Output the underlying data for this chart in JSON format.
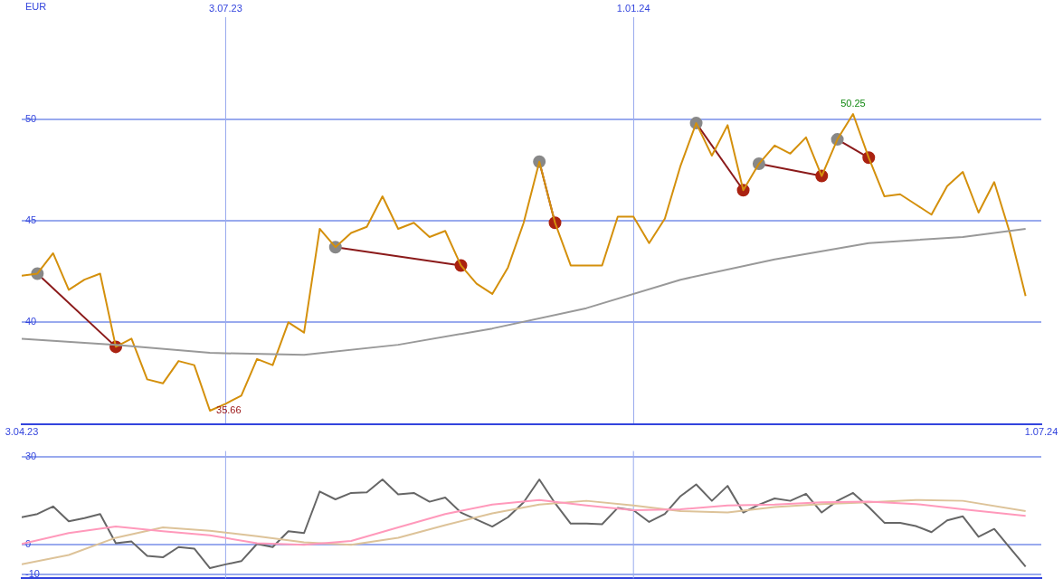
{
  "chart_data": [
    {
      "type": "line",
      "ylabel": "EUR",
      "x": [
        "2023-04-03",
        "2023-04-10",
        "2023-04-17",
        "2023-04-24",
        "2023-05-01",
        "2023-05-08",
        "2023-05-15",
        "2023-05-22",
        "2023-05-29",
        "2023-06-05",
        "2023-06-12",
        "2023-06-19",
        "2023-06-26",
        "2023-07-03",
        "2023-07-10",
        "2023-07-17",
        "2023-07-24",
        "2023-07-31",
        "2023-08-07",
        "2023-08-14",
        "2023-08-21",
        "2023-08-28",
        "2023-09-04",
        "2023-09-11",
        "2023-09-18",
        "2023-09-25",
        "2023-10-02",
        "2023-10-09",
        "2023-10-16",
        "2023-10-23",
        "2023-10-30",
        "2023-11-06",
        "2023-11-13",
        "2023-11-20",
        "2023-11-27",
        "2023-12-04",
        "2023-12-11",
        "2023-12-18",
        "2023-12-25",
        "2024-01-01",
        "2024-01-08",
        "2024-01-15",
        "2024-01-22",
        "2024-01-29",
        "2024-02-05",
        "2024-02-12",
        "2024-02-19",
        "2024-02-26",
        "2024-03-04",
        "2024-03-11",
        "2024-03-18",
        "2024-03-25",
        "2024-04-01",
        "2024-04-08",
        "2024-04-15",
        "2024-04-22",
        "2024-04-29",
        "2024-05-06",
        "2024-05-13",
        "2024-05-20",
        "2024-05-27",
        "2024-06-03",
        "2024-06-10",
        "2024-06-17",
        "2024-06-24"
      ],
      "series": [
        {
          "color": "#999999",
          "marker": "none",
          "x": [
            "2023-04-03",
            "2023-05-15",
            "2023-06-26",
            "2023-08-07",
            "2023-09-18",
            "2023-10-30",
            "2023-12-11",
            "2024-01-22",
            "2024-03-04",
            "2024-04-15",
            "2024-05-27",
            "2024-06-24"
          ],
          "values": [
            39.2,
            38.9,
            38.5,
            38.4,
            38.9,
            39.7,
            40.7,
            42.1,
            43.1,
            43.9,
            44.2,
            44.6
          ]
        },
        {
          "color": "#d4900c",
          "marker": "none",
          "values": [
            42.3,
            42.4,
            43.4,
            41.6,
            42.1,
            42.4,
            38.8,
            39.2,
            37.2,
            37.0,
            38.1,
            37.9,
            35.66,
            36.0,
            36.4,
            38.2,
            37.9,
            40.0,
            39.5,
            44.6,
            43.7,
            44.4,
            44.7,
            46.2,
            44.6,
            44.9,
            44.2,
            44.5,
            42.8,
            41.9,
            41.4,
            42.7,
            44.9,
            47.9,
            44.9,
            42.8,
            42.8,
            42.8,
            45.2,
            45.2,
            43.9,
            45.1,
            47.7,
            49.8,
            48.2,
            49.7,
            46.5,
            47.8,
            48.7,
            48.3,
            49.1,
            47.2,
            49.0,
            50.25,
            48.1,
            46.2,
            46.3,
            45.8,
            45.3,
            46.7,
            47.4,
            45.4,
            46.9,
            44.4,
            41.3
          ]
        },
        {
          "color": "#8b1a1a",
          "marker": "circle",
          "x": [
            "2023-04-10",
            "2023-05-15"
          ],
          "values": [
            42.4,
            38.8
          ],
          "colors": [
            "#888888",
            "#aa2211"
          ]
        },
        {
          "color": "#8b1a1a",
          "marker": "circle",
          "x": [
            "2023-08-21",
            "2023-10-16"
          ],
          "values": [
            43.7,
            42.8
          ],
          "colors": [
            "#888888",
            "#aa2211"
          ]
        },
        {
          "color": "#8b1a1a",
          "marker": "circle",
          "x": [
            "2023-11-20",
            "2023-11-27"
          ],
          "values": [
            47.9,
            44.9
          ],
          "colors": [
            "#888888",
            "#aa2211"
          ]
        },
        {
          "color": "#8b1a1a",
          "marker": "circle",
          "x": [
            "2024-01-29",
            "2024-02-19"
          ],
          "values": [
            49.8,
            46.5
          ],
          "colors": [
            "#888888",
            "#aa2211"
          ]
        },
        {
          "color": "#8b1a1a",
          "marker": "circle",
          "x": [
            "2024-02-26",
            "2024-03-25"
          ],
          "values": [
            47.8,
            47.2
          ],
          "colors": [
            "#888888",
            "#aa2211"
          ]
        },
        {
          "color": "#8b1a1a",
          "marker": "circle",
          "x": [
            "2024-04-01",
            "2024-04-15"
          ],
          "values": [
            49.0,
            48.1
          ],
          "colors": [
            "#888888",
            "#aa2211"
          ]
        }
      ],
      "xlim": [
        "2023-04-03",
        "2024-07-01"
      ],
      "xticks": [
        {
          "value": "2023-04-03",
          "label": "3.04.23"
        },
        {
          "value": "2024-07-01",
          "label": "1.07.24"
        }
      ],
      "x2lim": [
        "2023-04-03",
        "2024-07-01"
      ],
      "x2ticks": [
        {
          "value": "2023-07-03",
          "label": "3.07.23"
        },
        {
          "value": "2024-01-01",
          "label": "1.01.24"
        }
      ],
      "ylim": [
        35,
        55
      ],
      "yticks": [
        40,
        45,
        50
      ],
      "grid": true,
      "annotations": [
        {
          "text": "35.66",
          "x": "2023-06-26",
          "y": 35.66
        },
        {
          "text": "50.25",
          "x": "2024-04-08",
          "y": 50.25
        }
      ]
    },
    {
      "type": "line",
      "x": [
        "2023-04-03",
        "2023-04-10",
        "2023-04-17",
        "2023-04-24",
        "2023-05-01",
        "2023-05-08",
        "2023-05-15",
        "2023-05-22",
        "2023-05-29",
        "2023-06-05",
        "2023-06-12",
        "2023-06-19",
        "2023-06-26",
        "2023-07-03",
        "2023-07-10",
        "2023-07-17",
        "2023-07-24",
        "2023-07-31",
        "2023-08-07",
        "2023-08-14",
        "2023-08-21",
        "2023-08-28",
        "2023-09-04",
        "2023-09-11",
        "2023-09-18",
        "2023-09-25",
        "2023-10-02",
        "2023-10-09",
        "2023-10-16",
        "2023-10-23",
        "2023-10-30",
        "2023-11-06",
        "2023-11-13",
        "2023-11-20",
        "2023-11-27",
        "2023-12-04",
        "2023-12-11",
        "2023-12-18",
        "2023-12-25",
        "2024-01-01",
        "2024-01-08",
        "2024-01-15",
        "2024-01-22",
        "2024-01-29",
        "2024-02-05",
        "2024-02-12",
        "2024-02-19",
        "2024-02-26",
        "2024-03-04",
        "2024-03-11",
        "2024-03-18",
        "2024-03-25",
        "2024-04-01",
        "2024-04-08",
        "2024-04-15",
        "2024-04-22",
        "2024-04-29",
        "2024-05-06",
        "2024-05-13",
        "2024-05-20",
        "2024-05-27",
        "2024-06-03",
        "2024-06-10",
        "2024-06-17",
        "2024-06-24"
      ],
      "series": [
        {
          "color": "#ff99bb",
          "marker": "none",
          "x": [
            "2023-04-03",
            "2023-04-24",
            "2023-05-15",
            "2023-06-05",
            "2023-06-26",
            "2023-07-17",
            "2023-08-07",
            "2023-08-28",
            "2023-09-18",
            "2023-10-09",
            "2023-10-30",
            "2023-11-20",
            "2023-12-11",
            "2024-01-01",
            "2024-01-22",
            "2024-02-12",
            "2024-03-04",
            "2024-03-25",
            "2024-04-15",
            "2024-05-06",
            "2024-05-27",
            "2024-06-24"
          ],
          "values": [
            0.3,
            4,
            6.2,
            4.6,
            3.2,
            0.5,
            0,
            1.3,
            5.9,
            10.5,
            13.7,
            15.3,
            13.4,
            11.8,
            12.1,
            13.4,
            13.7,
            14.5,
            14.7,
            13.9,
            12.1,
            9.9
          ]
        },
        {
          "color": "#ddc399",
          "marker": "none",
          "x": [
            "2023-04-03",
            "2023-04-24",
            "2023-05-15",
            "2023-06-05",
            "2023-06-26",
            "2023-07-17",
            "2023-08-07",
            "2023-08-28",
            "2023-09-18",
            "2023-10-09",
            "2023-10-30",
            "2023-11-20",
            "2023-12-11",
            "2024-01-01",
            "2024-01-22",
            "2024-02-12",
            "2024-03-04",
            "2024-03-25",
            "2024-04-15",
            "2024-05-06",
            "2024-05-27",
            "2024-06-24"
          ],
          "values": [
            -6.7,
            -3.5,
            2.4,
            5.9,
            4.8,
            2.9,
            0.8,
            0,
            2.4,
            6.7,
            10.7,
            13.7,
            15.0,
            13.4,
            11.5,
            11.0,
            12.9,
            13.9,
            14.5,
            15.3,
            15.0,
            11.5
          ]
        },
        {
          "color": "#666666",
          "marker": "none",
          "values": [
            9.4,
            10.5,
            13.1,
            8.0,
            9.1,
            10.5,
            0.5,
            1.1,
            -3.8,
            -4.3,
            -0.8,
            -1.3,
            -8.0,
            -6.7,
            -5.6,
            0.3,
            -0.8,
            4.6,
            4.0,
            18.2,
            15.5,
            17.7,
            17.9,
            22.3,
            17.2,
            17.7,
            14.7,
            16.1,
            11.0,
            8.6,
            6.2,
            9.4,
            14.5,
            22.3,
            14.2,
            7.2,
            7.2,
            7.0,
            12.6,
            11.8,
            7.8,
            10.5,
            16.6,
            20.6,
            15.0,
            20.1,
            11.0,
            13.7,
            15.8,
            15.0,
            17.4,
            11.0,
            15.0,
            17.7,
            12.9,
            7.5,
            7.5,
            6.4,
            4.3,
            8.3,
            9.7,
            2.7,
            5.4,
            -1.1,
            -7.5
          ]
        }
      ],
      "xlim": [
        "2023-04-03",
        "2024-07-01"
      ],
      "ref_lines": [
        {
          "axis": "x",
          "value": "2023-07-03",
          "color": "#99aaee"
        },
        {
          "axis": "x",
          "value": "2024-01-01",
          "color": "#99aaee"
        }
      ],
      "ylim": [
        -11.5,
        32
      ],
      "yticks": [
        -10,
        0,
        30
      ],
      "grid": true,
      "tick_labels": "y"
    }
  ]
}
